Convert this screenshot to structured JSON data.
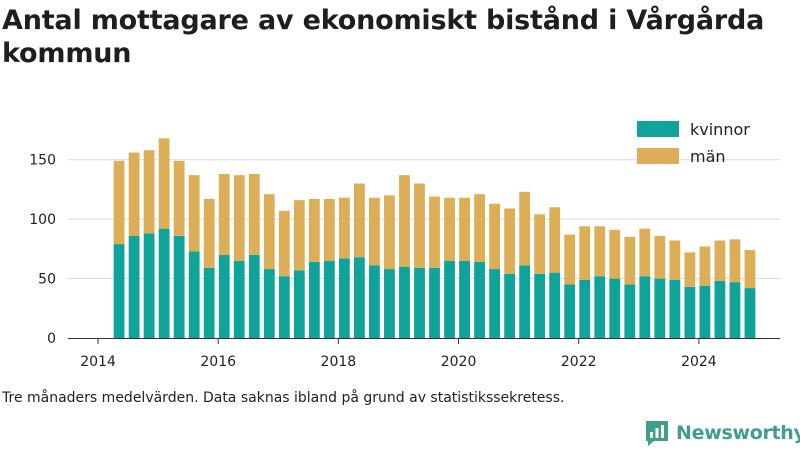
{
  "title": "Antal mottagare av ekonomiskt bistånd i Vårgårda kommun",
  "footnote": "Tre månaders medelvärden. Data saknas ibland på grund av statistikssekretess.",
  "brand": {
    "name": "Newsworthy",
    "icon": "newsworthy-logo-icon",
    "color": "#3f9e8c"
  },
  "chart_data": {
    "type": "bar",
    "stacked": true,
    "x_start": 2014.35,
    "x_step": 0.25,
    "xticks": [
      2014,
      2016,
      2018,
      2020,
      2022,
      2024
    ],
    "xlim": [
      2013.5,
      2025.35
    ],
    "ylim": [
      0,
      175
    ],
    "yticks": [
      0,
      50,
      100,
      150
    ],
    "grid": "horizontal",
    "legend_position": "top-right",
    "series": [
      {
        "name": "kvinnor",
        "color": "#0fa39a",
        "values": [
          79,
          86,
          88,
          92,
          86,
          73,
          59,
          70,
          65,
          70,
          58,
          52,
          57,
          64,
          65,
          67,
          68,
          61,
          58,
          60,
          59,
          59,
          65,
          65,
          64,
          58,
          54,
          61,
          54,
          55,
          45,
          49,
          52,
          50,
          45,
          52,
          50,
          49,
          43,
          44,
          48,
          47,
          42
        ]
      },
      {
        "name": "män",
        "color": "#ddae58",
        "values": [
          70,
          70,
          70,
          76,
          63,
          64,
          58,
          68,
          72,
          68,
          63,
          55,
          59,
          53,
          52,
          51,
          62,
          57,
          62,
          77,
          71,
          60,
          53,
          53,
          57,
          55,
          55,
          62,
          50,
          55,
          42,
          45,
          42,
          41,
          40,
          40,
          36,
          33,
          29,
          33,
          34,
          36,
          32
        ]
      }
    ]
  }
}
